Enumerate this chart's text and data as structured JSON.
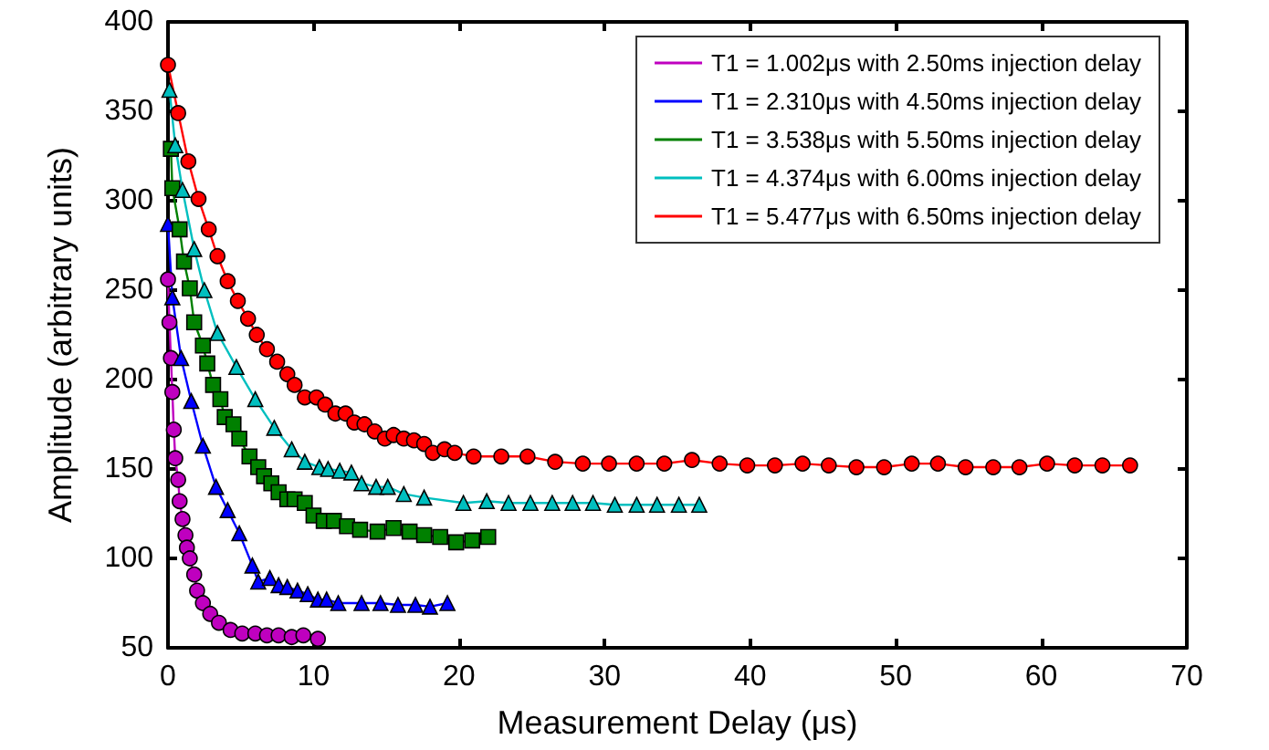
{
  "chart_data": {
    "type": "line",
    "xlabel": "Measurement Delay (μs)",
    "ylabel": "Amplitude (arbitrary units)",
    "xlim": [
      0,
      70
    ],
    "ylim": [
      50,
      400
    ],
    "xticks": [
      0,
      10,
      20,
      30,
      40,
      50,
      60,
      70
    ],
    "yticks": [
      50,
      100,
      150,
      200,
      250,
      300,
      350,
      400
    ],
    "grid": false,
    "legend": "top right",
    "line_style": "solid",
    "series": [
      {
        "name": "T1 = 1.002μs with 2.50ms injection delay",
        "color": "#bf00bf",
        "marker": "circle",
        "x": [
          0,
          0.1,
          0.2,
          0.3,
          0.4,
          0.5,
          0.7,
          0.8,
          1.0,
          1.2,
          1.3,
          1.5,
          1.8,
          2.0,
          2.4,
          2.9,
          3.5,
          4.3,
          5.1,
          6.0,
          6.8,
          7.6,
          8.5,
          9.3,
          10.3
        ],
        "values": [
          256,
          232,
          212,
          193,
          172,
          156,
          144,
          132,
          122,
          113,
          106,
          100,
          91,
          82,
          75,
          69,
          64,
          60,
          58,
          58,
          57,
          57,
          56,
          57,
          55
        ]
      },
      {
        "name": "T1 = 2.310μs with 4.50ms injection delay",
        "color": "#0000ff",
        "marker": "triangle",
        "x": [
          0,
          0.3,
          0.9,
          1.6,
          2.4,
          3.3,
          4.1,
          4.9,
          5.8,
          6.2,
          7.0,
          7.6,
          8.2,
          8.9,
          9.6,
          10.3,
          10.9,
          11.7,
          13.3,
          14.6,
          15.8,
          17.0,
          18.0,
          19.2
        ],
        "values": [
          287,
          246,
          212,
          188,
          163,
          140,
          127,
          114,
          96,
          87,
          89,
          85,
          84,
          82,
          80,
          77,
          77,
          75,
          75,
          75,
          74,
          74,
          73,
          75
        ]
      },
      {
        "name": "T1 = 3.538μs with 5.50ms injection delay",
        "color": "#008000",
        "marker": "square",
        "x": [
          0.2,
          0.3,
          0.8,
          1.1,
          1.5,
          1.8,
          2.4,
          2.7,
          3.1,
          3.6,
          3.9,
          4.5,
          4.9,
          5.6,
          6.2,
          6.6,
          7.1,
          7.6,
          8.2,
          8.7,
          9.4,
          10.0,
          10.7,
          11.4,
          12.3,
          13.2,
          14.4,
          15.5,
          16.6,
          17.6,
          18.7,
          19.8,
          20.9,
          22.0
        ],
        "values": [
          329,
          307,
          284,
          266,
          251,
          232,
          219,
          209,
          197,
          189,
          179,
          175,
          167,
          157,
          151,
          146,
          142,
          137,
          133,
          133,
          131,
          124,
          121,
          121,
          118,
          116,
          115,
          117,
          115,
          113,
          112,
          109,
          110,
          112
        ]
      },
      {
        "name": "T1 = 4.374μs with 6.00ms injection delay",
        "color": "#00bfbf",
        "marker": "triangle",
        "x": [
          0.1,
          0.5,
          1.0,
          1.8,
          2.5,
          3.4,
          4.7,
          6.0,
          7.3,
          8.5,
          9.4,
          10.4,
          11.0,
          11.8,
          12.6,
          13.3,
          14.3,
          15.1,
          16.2,
          17.6,
          20.3,
          21.9,
          23.4,
          24.9,
          26.4,
          27.8,
          29.2,
          30.7,
          32.2,
          33.6,
          35.1,
          36.5
        ],
        "values": [
          362,
          331,
          306,
          273,
          250,
          226,
          207,
          189,
          173,
          161,
          154,
          151,
          150,
          149,
          148,
          142,
          140,
          140,
          136,
          134,
          131,
          132,
          131,
          131,
          131,
          131,
          131,
          130,
          130,
          130,
          130,
          130
        ]
      },
      {
        "name": "T1 = 5.477μs with 6.50ms injection delay",
        "color": "#ff0000",
        "marker": "circle",
        "x": [
          0,
          0.7,
          1.4,
          2.1,
          2.8,
          3.4,
          4.1,
          4.8,
          5.5,
          6.1,
          6.8,
          7.5,
          8.2,
          8.7,
          9.4,
          10.2,
          10.8,
          11.5,
          12.2,
          12.8,
          13.5,
          14.2,
          14.9,
          15.5,
          16.2,
          16.9,
          17.6,
          18.2,
          19.0,
          19.7,
          21.0,
          22.9,
          24.7,
          26.6,
          28.5,
          30.3,
          32.2,
          34.1,
          36.0,
          37.9,
          39.8,
          41.7,
          43.6,
          45.4,
          47.3,
          49.2,
          51.1,
          52.9,
          54.8,
          56.7,
          58.5,
          60.4,
          62.3,
          64.2,
          66.1
        ],
        "values": [
          376,
          349,
          322,
          301,
          284,
          269,
          255,
          244,
          234,
          225,
          217,
          210,
          203,
          197,
          190,
          190,
          186,
          181,
          181,
          176,
          175,
          171,
          167,
          169,
          167,
          166,
          164,
          159,
          161,
          159,
          157,
          157,
          157,
          154,
          153,
          153,
          153,
          153,
          155,
          153,
          152,
          152,
          153,
          152,
          151,
          151,
          153,
          153,
          151,
          151,
          151,
          153,
          152,
          152,
          152
        ]
      }
    ]
  }
}
